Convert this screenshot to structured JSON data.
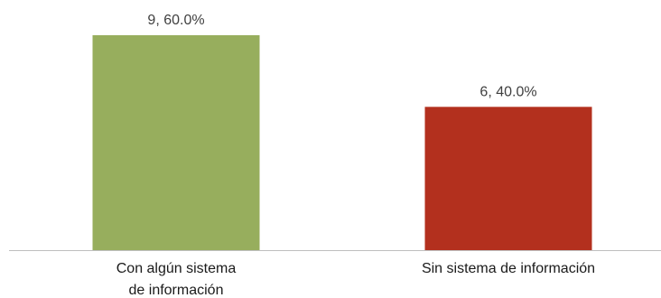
{
  "chart_data": {
    "type": "bar",
    "categories": [
      [
        "Con algún sistema",
        "de información"
      ],
      [
        "Sin sistema de información"
      ]
    ],
    "values": [
      9,
      6
    ],
    "percentages": [
      "60.0%",
      "40.0%"
    ],
    "data_labels": [
      "9, 60.0%",
      "6, 40.0%"
    ],
    "colors": [
      "#97ae5d",
      "#b3301e"
    ],
    "ylim": [
      0,
      10
    ],
    "grid": false,
    "legend": "none"
  }
}
